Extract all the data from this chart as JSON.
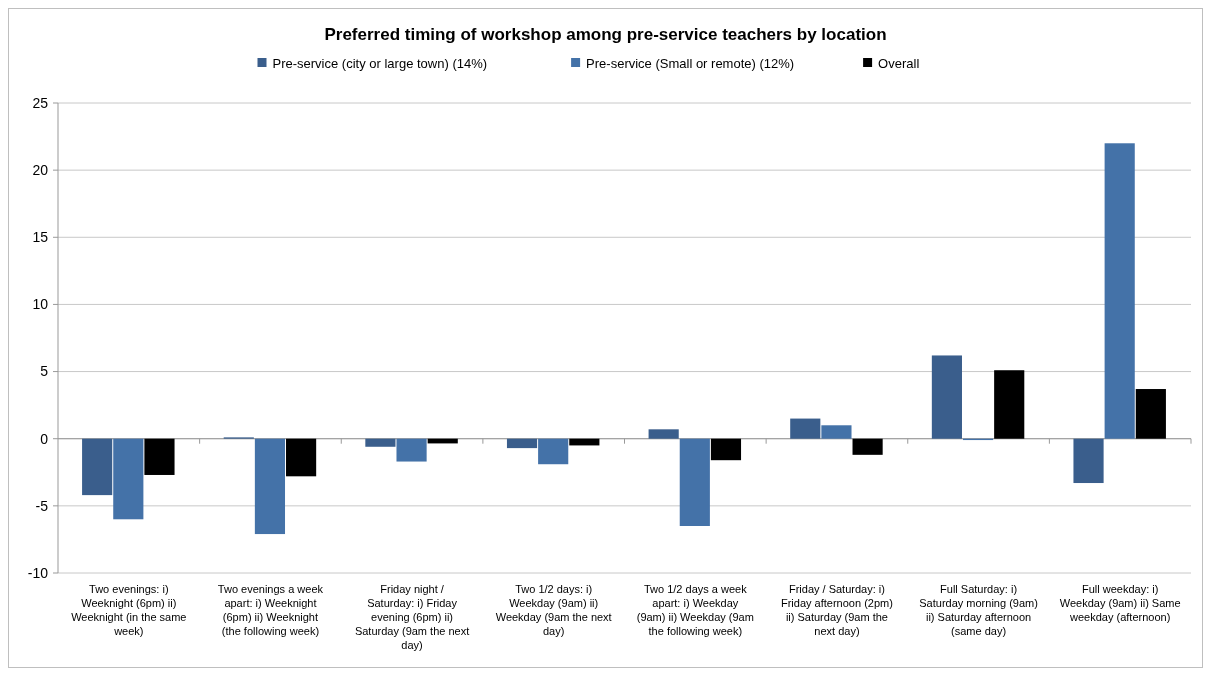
{
  "chart_data": {
    "type": "bar",
    "title": "Preferred timing of workshop among pre-service teachers by location",
    "categories": [
      "Two evenings: i) Weeknight (6pm) ii) Weeknight (in the same week)",
      "Two evenings a week apart: i) Weeknight (6pm) ii) Weeknight (the following week)",
      "Friday night / Saturday: i) Friday evening (6pm) ii) Saturday (9am the next day)",
      "Two 1/2 days: i) Weekday (9am) ii) Weekday (9am the next day)",
      "Two 1/2 days a week apart: i) Weekday (9am) ii) Weekday (9am the following week)",
      "Friday / Saturday: i) Friday afternoon (2pm) ii) Saturday (9am the next day)",
      "Full Saturday: i) Saturday morning (9am) ii) Saturday afternoon (same day)",
      "Full weekday: i) Weekday (9am) ii) Same weekday (afternoon)"
    ],
    "series": [
      {
        "name": "Pre-service (city or large town) (14%)",
        "color": "#3a5e8c",
        "values": [
          -4.2,
          0.1,
          -0.6,
          -0.7,
          0.7,
          1.5,
          6.2,
          -3.3
        ]
      },
      {
        "name": "Pre-service (Small or remote) (12%)",
        "color": "#4472a8",
        "values": [
          -6.0,
          -7.1,
          -1.7,
          -1.9,
          -6.5,
          1.0,
          -0.1,
          22.0
        ]
      },
      {
        "name": "Overall",
        "color": "#000000",
        "values": [
          -2.7,
          -2.8,
          -0.35,
          -0.5,
          -1.6,
          -1.2,
          5.1,
          3.7
        ]
      }
    ],
    "ylim": [
      -10,
      25
    ],
    "yticks": [
      -10,
      -5,
      0,
      5,
      10,
      15,
      20,
      25
    ],
    "grid": "y",
    "legend": "top"
  }
}
